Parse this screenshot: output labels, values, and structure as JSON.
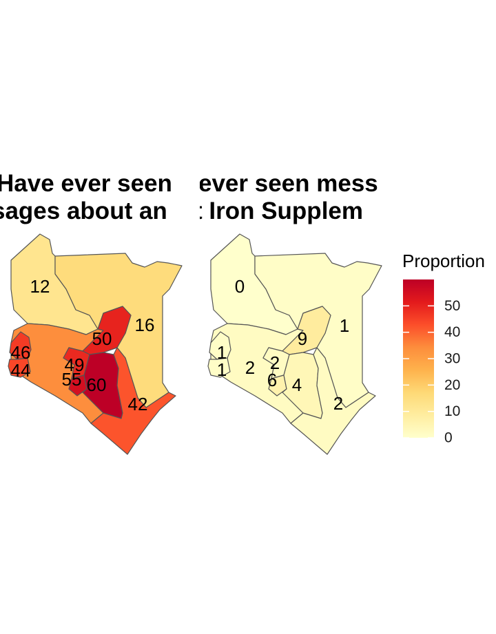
{
  "legend": {
    "title": "Proportion",
    "ticks": [
      0,
      10,
      20,
      30,
      40,
      50
    ],
    "range": [
      0,
      60
    ],
    "colors": [
      "#FFFFCC",
      "#FFEDA0",
      "#FED976",
      "#FEB24C",
      "#FD8D3C",
      "#FC4E2A",
      "#E31A1C",
      "#BD0026"
    ],
    "palette": "YlOrRd"
  },
  "panels": [
    {
      "title_line1": "Have ever seen",
      "title_line2": "sages about an",
      "regions": [
        {
          "id": "northwest",
          "value": 12
        },
        {
          "id": "northeast",
          "value": 16
        },
        {
          "id": "rift",
          "value": 34
        },
        {
          "id": "west_top",
          "value": 46
        },
        {
          "id": "west_bottom",
          "value": 44
        },
        {
          "id": "central",
          "value": 50
        },
        {
          "id": "nyanza",
          "value": 49
        },
        {
          "id": "nairobi",
          "value": 55
        },
        {
          "id": "eastern",
          "value": 60
        },
        {
          "id": "coast",
          "value": 42
        }
      ],
      "labels": [
        "12",
        "16",
        "46",
        "44",
        "50",
        "49",
        "55",
        "60",
        "42"
      ]
    },
    {
      "title_line1": "ever seen mess",
      "title_line2": "t Iron Supplem",
      "regions": [
        {
          "id": "northwest",
          "value": 0
        },
        {
          "id": "northeast",
          "value": 1
        },
        {
          "id": "rift",
          "value": 2
        },
        {
          "id": "west_top",
          "value": 1
        },
        {
          "id": "west_bottom",
          "value": 1
        },
        {
          "id": "central",
          "value": 9
        },
        {
          "id": "nyanza",
          "value": 2
        },
        {
          "id": "nairobi",
          "value": 6
        },
        {
          "id": "eastern",
          "value": 4
        },
        {
          "id": "coast",
          "value": 2
        }
      ],
      "labels": [
        "0",
        "1",
        "1",
        "1",
        "2",
        "2",
        "9",
        "6",
        "4",
        "2"
      ]
    }
  ]
}
